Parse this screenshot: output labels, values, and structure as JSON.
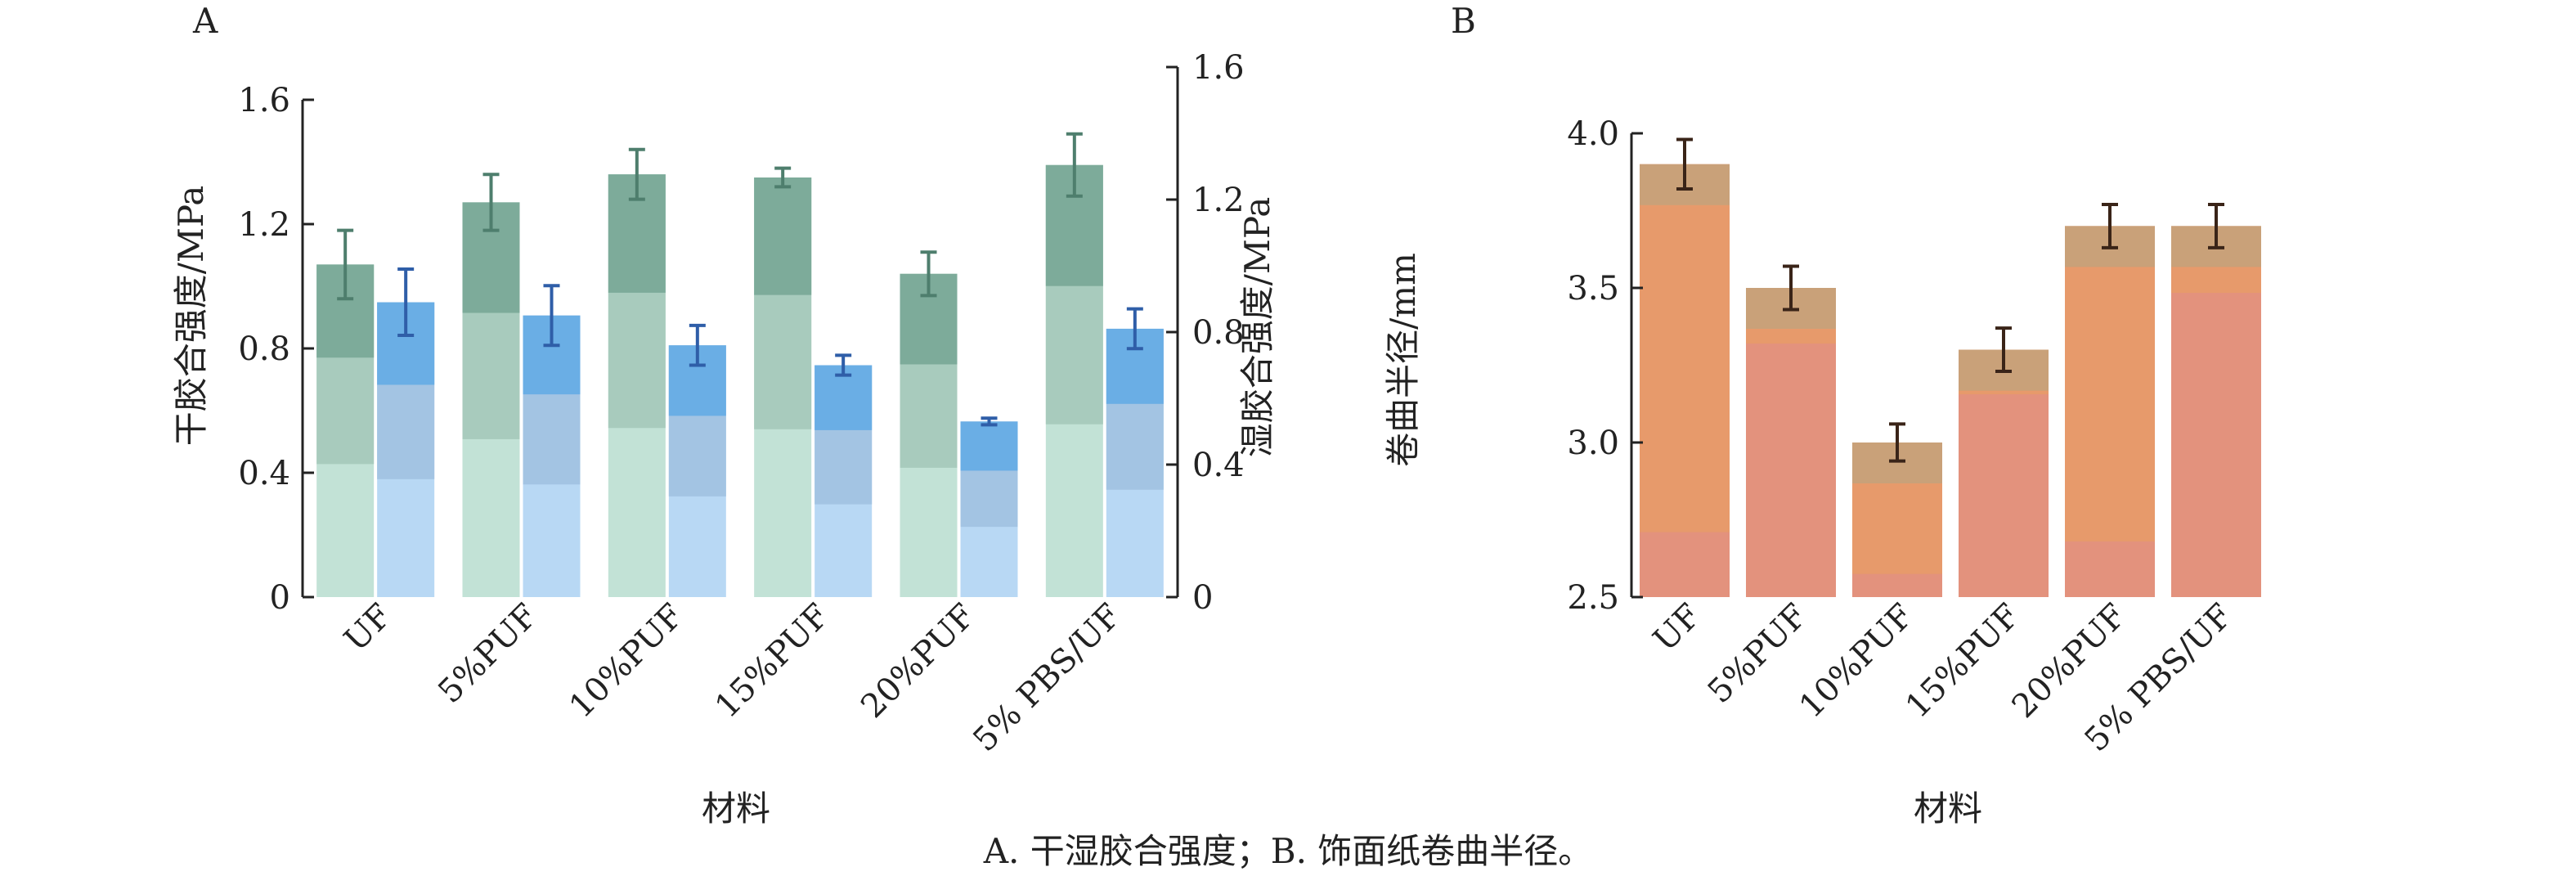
{
  "caption": "A. 干湿胶合强度；B. 饰面纸卷曲半径。",
  "colors": {
    "dry_top": "#7dab9a",
    "dry_mid": "#a8cbbd",
    "dry_bottom": "#c2e2d6",
    "wet_top": "#6aaee5",
    "wet_mid": "#a3c4e3",
    "wet_bottom": "#b8d8f4",
    "curl_top": "#c9a179",
    "curl_main": "#e79a6b",
    "curl_pink": "#e3927d",
    "err_dry": "#4e7e6d",
    "err_wet": "#2f5ea8",
    "err_curl": "#3a2418",
    "axis": "#222222"
  },
  "chart_data": [
    {
      "type": "bar",
      "panel_label": "A",
      "categories": [
        "UF",
        "5%PUF",
        "10%PUF",
        "15%PUF",
        "20%PUF",
        "5% PBS/UF"
      ],
      "series": [
        {
          "name": "干胶合强度",
          "axis": "left",
          "values": [
            1.07,
            1.27,
            1.36,
            1.35,
            1.04,
            1.39
          ],
          "errors": [
            0.11,
            0.09,
            0.08,
            0.03,
            0.07,
            0.1
          ]
        },
        {
          "name": "湿胶合强度",
          "axis": "right",
          "values": [
            0.89,
            0.85,
            0.76,
            0.7,
            0.53,
            0.81
          ],
          "errors": [
            0.1,
            0.09,
            0.06,
            0.03,
            0.01,
            0.06
          ]
        }
      ],
      "ylabel": "干胶合强度/MPa",
      "ylabel_right": "湿胶合强度/MPa",
      "xlabel": "材料",
      "ylim": [
        0,
        1.6
      ],
      "ylim_right": [
        0,
        1.6
      ],
      "yticks": [
        "0",
        "0.4",
        "0.8",
        "1.2",
        "1.6"
      ],
      "yticks_right": [
        "0",
        "0.4",
        "0.8",
        "1.2",
        "1.6"
      ]
    },
    {
      "type": "bar",
      "panel_label": "B",
      "categories": [
        "UF",
        "5%PUF",
        "10%PUF",
        "15%PUF",
        "20%PUF",
        "5% PBS/UF"
      ],
      "series": [
        {
          "name": "卷曲半径",
          "values": [
            3.9,
            3.5,
            3.0,
            3.3,
            3.7,
            3.7
          ],
          "errors": [
            0.08,
            0.07,
            0.06,
            0.07,
            0.07,
            0.07
          ]
        }
      ],
      "ylabel": "卷曲半径/mm",
      "xlabel": "材料",
      "ylim": [
        2.5,
        4.0
      ],
      "yticks": [
        "2.5",
        "3.0",
        "3.5",
        "4.0"
      ]
    }
  ]
}
